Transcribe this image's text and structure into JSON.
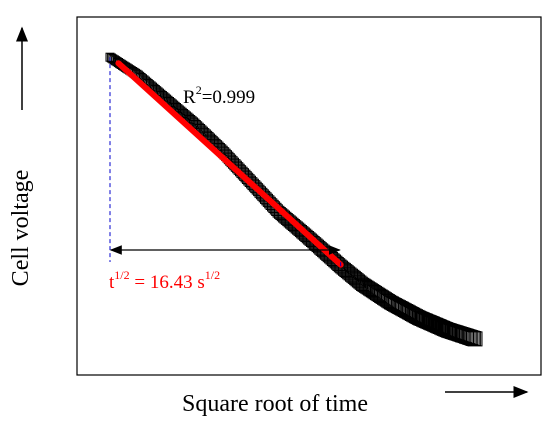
{
  "chart_data": {
    "type": "scatter",
    "xlabel": "Square root of time",
    "ylabel": "Cell voltage",
    "axis_ticks": "none",
    "xlim": [
      0,
      26
    ],
    "ylim": [
      0,
      1
    ],
    "series": [
      {
        "marker": "open-square",
        "color": "#000000",
        "x": [
          0,
          2,
          4,
          6,
          8,
          10,
          12,
          14,
          16.43,
          18,
          20,
          22,
          24,
          26
        ],
        "y": [
          0.95,
          0.89,
          0.81,
          0.73,
          0.64,
          0.54,
          0.44,
          0.36,
          0.26,
          0.2,
          0.14,
          0.09,
          0.05,
          0.02
        ]
      }
    ],
    "fit": {
      "color": "#ff0000",
      "x": [
        0.6,
        16.43
      ],
      "y": [
        0.93,
        0.265
      ],
      "r2_text": "R",
      "r2_sup": "2",
      "r2_rest": "=0.999"
    },
    "annotation": {
      "color": "#ff0000",
      "x_start": 0,
      "x_end": 16.43,
      "guide_color": "#0000cc",
      "text_t": "t",
      "text_t_sup": "1/2",
      "text_mid": " = 16.43 s",
      "text_s_sup": "1/2"
    }
  }
}
